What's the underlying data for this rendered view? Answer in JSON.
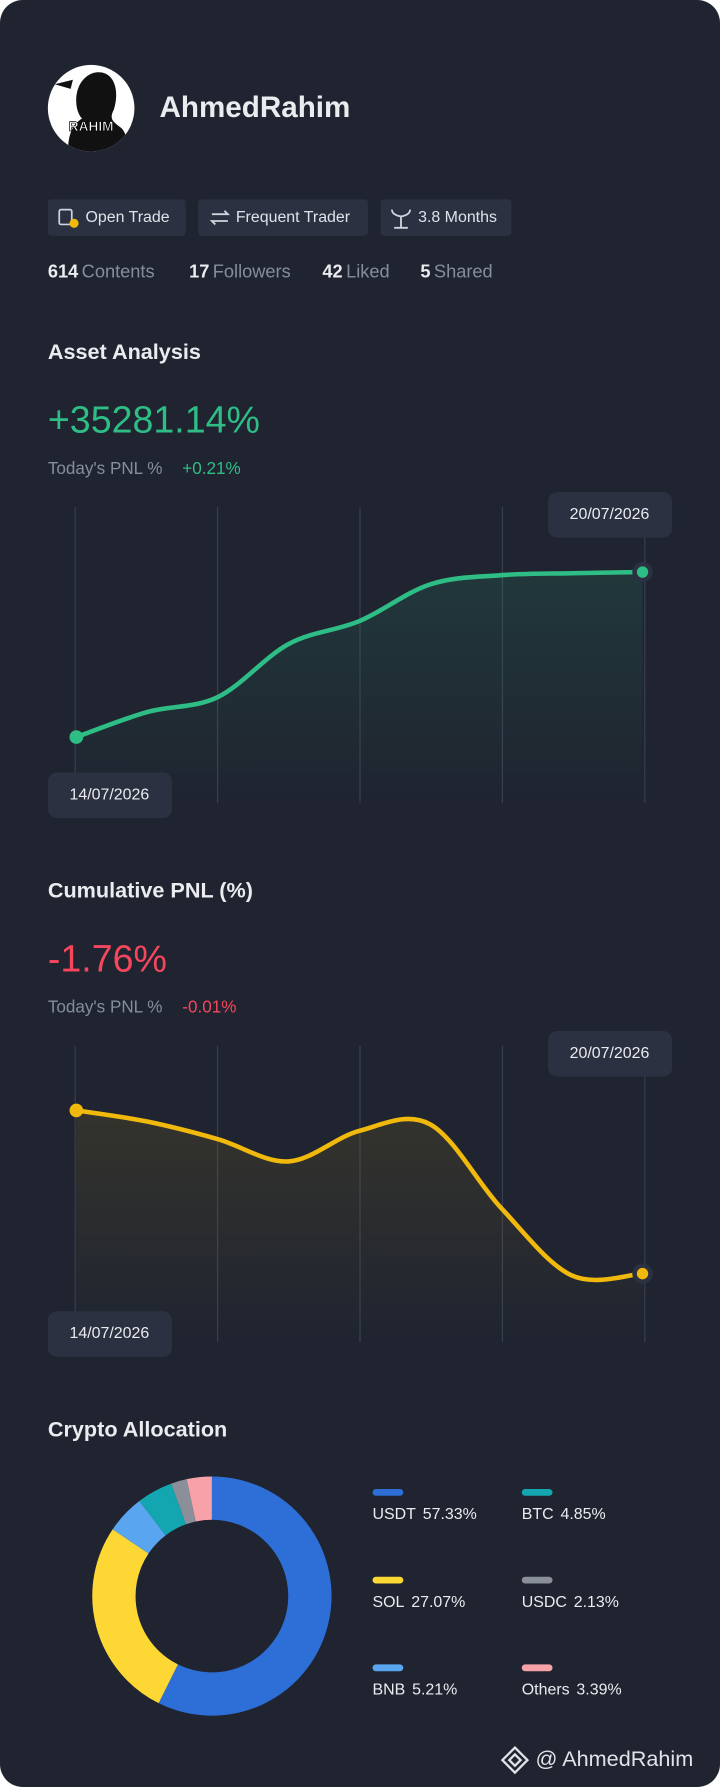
{
  "profile": {
    "avatar_text": "RAHIM",
    "name": "AhmedRahim",
    "badges": [
      "Open Trade",
      "Frequent Trader",
      "3.8 Months"
    ],
    "stats": [
      {
        "value": 614,
        "label": "Contents"
      },
      {
        "value": 17,
        "label": "Followers"
      },
      {
        "value": 42,
        "label": "Liked"
      },
      {
        "value": 5,
        "label": "Shared"
      }
    ]
  },
  "asset_analysis": {
    "title": "Asset Analysis",
    "value": "+35281.14%",
    "today_label": "Today's PNL %",
    "today_value": "+0.21%",
    "chart_data": {
      "type": "line",
      "start_label": "14/07/2026",
      "end_label": "20/07/2026",
      "series": [
        {
          "color": "#2ebd85",
          "values": [
            10087,
            13900,
            16200,
            24300,
            27800,
            33400,
            34800,
            35100,
            35281.14
          ]
        }
      ],
      "ylim": [
        0,
        40000
      ]
    }
  },
  "cumulative_pnl": {
    "title": "Cumulative PNL (%)",
    "value": "-1.76%",
    "today_label": "Today's PNL %",
    "today_value": "-0.01%",
    "chart_data": {
      "type": "line",
      "start_label": "14/07/2026",
      "end_label": "20/07/2026",
      "series": [
        {
          "color": "#f0b90b",
          "values": [
            0,
            -0.12,
            -0.31,
            -0.55,
            -0.22,
            -0.15,
            -1.05,
            -1.78,
            -1.76
          ]
        }
      ],
      "ylim": [
        -2,
        0.5
      ]
    }
  },
  "crypto_allocation": {
    "chart_data": {
      "type": "pie",
      "title": "Crypto Allocation",
      "categories": [
        "USDT",
        "SOL",
        "BNB",
        "BTC",
        "USDC",
        "Others"
      ],
      "values": [
        57.33,
        27.07,
        5.21,
        4.85,
        2.13,
        3.39
      ],
      "value_labels": [
        "57.33%",
        "27.07%",
        "5.21%",
        "4.85%",
        "2.13%",
        "3.39%"
      ],
      "colors": [
        "#2d6fd6",
        "#fdd835",
        "#5aa5f0",
        "#14a6b0",
        "#8a8f99",
        "#f7a1a8"
      ]
    }
  },
  "footer": {
    "handle": "@ AhmedRahim"
  }
}
